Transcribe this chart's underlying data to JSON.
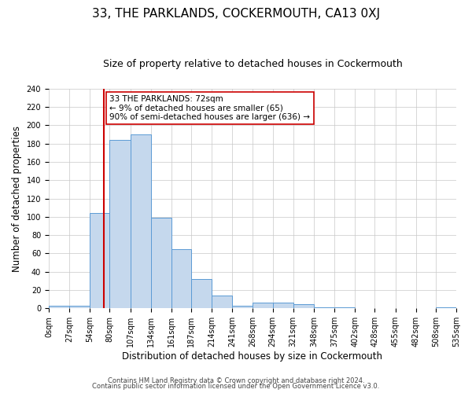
{
  "title": "33, THE PARKLANDS, COCKERMOUTH, CA13 0XJ",
  "subtitle": "Size of property relative to detached houses in Cockermouth",
  "xlabel": "Distribution of detached houses by size in Cockermouth",
  "ylabel": "Number of detached properties",
  "bin_edges": [
    0,
    27,
    54,
    80,
    107,
    134,
    161,
    187,
    214,
    241,
    268,
    294,
    321,
    348,
    375,
    402,
    428,
    455,
    482,
    508,
    535
  ],
  "bin_heights": [
    3,
    3,
    104,
    184,
    190,
    99,
    65,
    32,
    14,
    3,
    6,
    6,
    5,
    1,
    1,
    0,
    0,
    0,
    0,
    1
  ],
  "bar_color": "#c5d8ed",
  "bar_edge_color": "#5b9bd5",
  "property_size": 72,
  "red_line_color": "#cc0000",
  "annotation_line1": "33 THE PARKLANDS: 72sqm",
  "annotation_line2": "← 9% of detached houses are smaller (65)",
  "annotation_line3": "90% of semi-detached houses are larger (636) →",
  "annotation_box_color": "#ffffff",
  "annotation_box_edge_color": "#cc0000",
  "ylim": [
    0,
    240
  ],
  "yticks": [
    0,
    20,
    40,
    60,
    80,
    100,
    120,
    140,
    160,
    180,
    200,
    220,
    240
  ],
  "grid_color": "#c8c8c8",
  "footer_line1": "Contains HM Land Registry data © Crown copyright and database right 2024.",
  "footer_line2": "Contains public sector information licensed under the Open Government Licence v3.0.",
  "title_fontsize": 11,
  "subtitle_fontsize": 9,
  "axis_label_fontsize": 8.5,
  "tick_fontsize": 7,
  "annotation_fontsize": 7.5,
  "footer_fontsize": 6
}
